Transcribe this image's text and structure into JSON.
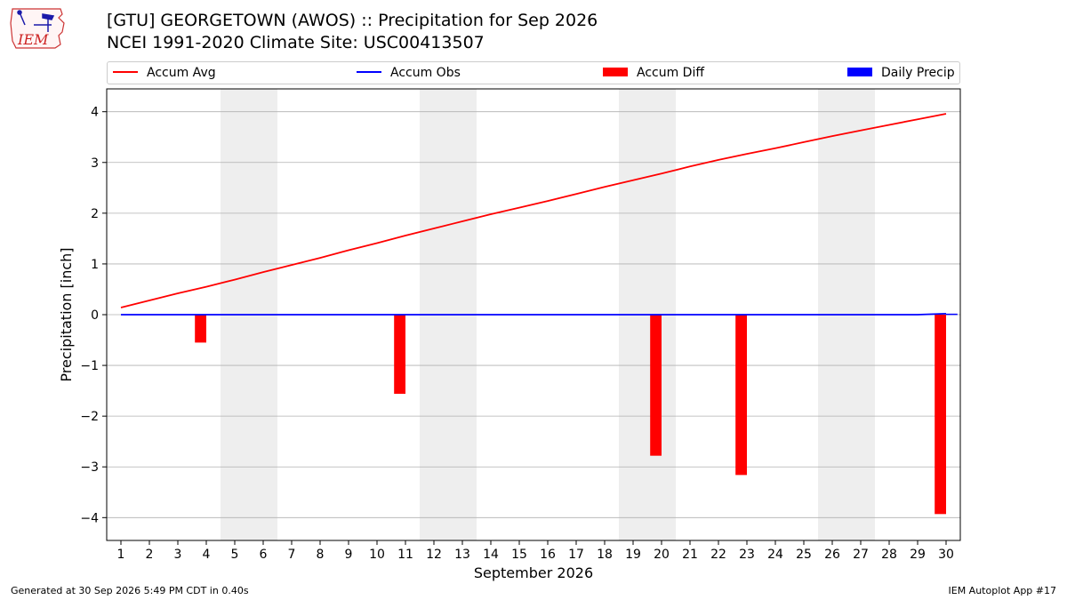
{
  "header": {
    "title_line1": "[GTU] GEORGETOWN (AWOS) :: Precipitation for Sep 2026",
    "title_line2": "NCEI 1991-2020 Climate Site: USC00413507",
    "logo_text": "IEM"
  },
  "footer": {
    "generated": "Generated at 30 Sep 2026 5:49 PM CDT in 0.40s",
    "app": "IEM Autoplot App #17"
  },
  "colors": {
    "avg": "#ff0000",
    "obs": "#0000ff",
    "diff": "#ff0000",
    "daily": "#0000ff",
    "weekend": "#eeeeee",
    "grid": "#b0b0b0"
  },
  "chart_data": {
    "type": "bar",
    "xlabel": "September 2026",
    "ylabel": "Precipitation [inch]",
    "ylim": [
      -4.45,
      4.45
    ],
    "yticks": [
      4,
      3,
      2,
      1,
      0,
      -1,
      -2,
      -3,
      -4
    ],
    "ytick_labels": [
      "4",
      "3",
      "2",
      "1",
      "0",
      "−1",
      "−2",
      "−3",
      "−4"
    ],
    "days": [
      1,
      2,
      3,
      4,
      5,
      6,
      7,
      8,
      9,
      10,
      11,
      12,
      13,
      14,
      15,
      16,
      17,
      18,
      19,
      20,
      21,
      22,
      23,
      24,
      25,
      26,
      27,
      28,
      29,
      30
    ],
    "weekend_days": [
      5,
      6,
      12,
      13,
      19,
      20,
      26,
      27
    ],
    "legend": [
      {
        "label": "Accum Avg",
        "kind": "line",
        "color": "#ff0000"
      },
      {
        "label": "Accum Obs",
        "kind": "line",
        "color": "#0000ff"
      },
      {
        "label": "Accum Diff",
        "kind": "box",
        "color": "#ff0000"
      },
      {
        "label": "Daily Precip",
        "kind": "box",
        "color": "#0000ff"
      }
    ],
    "series": [
      {
        "name": "Accum Avg",
        "type": "line",
        "values": [
          0.14,
          0.28,
          0.42,
          0.55,
          0.69,
          0.84,
          0.98,
          1.12,
          1.27,
          1.41,
          1.56,
          1.7,
          1.84,
          1.98,
          2.11,
          2.24,
          2.38,
          2.52,
          2.65,
          2.78,
          2.92,
          3.05,
          3.17,
          3.28,
          3.4,
          3.52,
          3.63,
          3.74,
          3.85,
          3.96
        ]
      },
      {
        "name": "Accum Obs",
        "type": "line",
        "values": [
          0,
          0,
          0,
          0,
          0,
          0,
          0,
          0,
          0,
          0,
          0,
          0,
          0,
          0,
          0,
          0,
          0,
          0,
          0,
          0,
          0,
          0,
          0,
          0,
          0,
          0,
          0,
          0,
          0,
          0.02
        ]
      },
      {
        "name": "Accum Diff",
        "type": "bar",
        "points": [
          {
            "day": 4,
            "value": -0.55
          },
          {
            "day": 11,
            "value": -1.56
          },
          {
            "day": 20,
            "value": -2.78
          },
          {
            "day": 23,
            "value": -3.16
          },
          {
            "day": 30,
            "value": -3.93
          }
        ]
      },
      {
        "name": "Daily Precip",
        "type": "bar",
        "points": [
          {
            "day": 30,
            "value": 0.02
          }
        ]
      }
    ]
  }
}
